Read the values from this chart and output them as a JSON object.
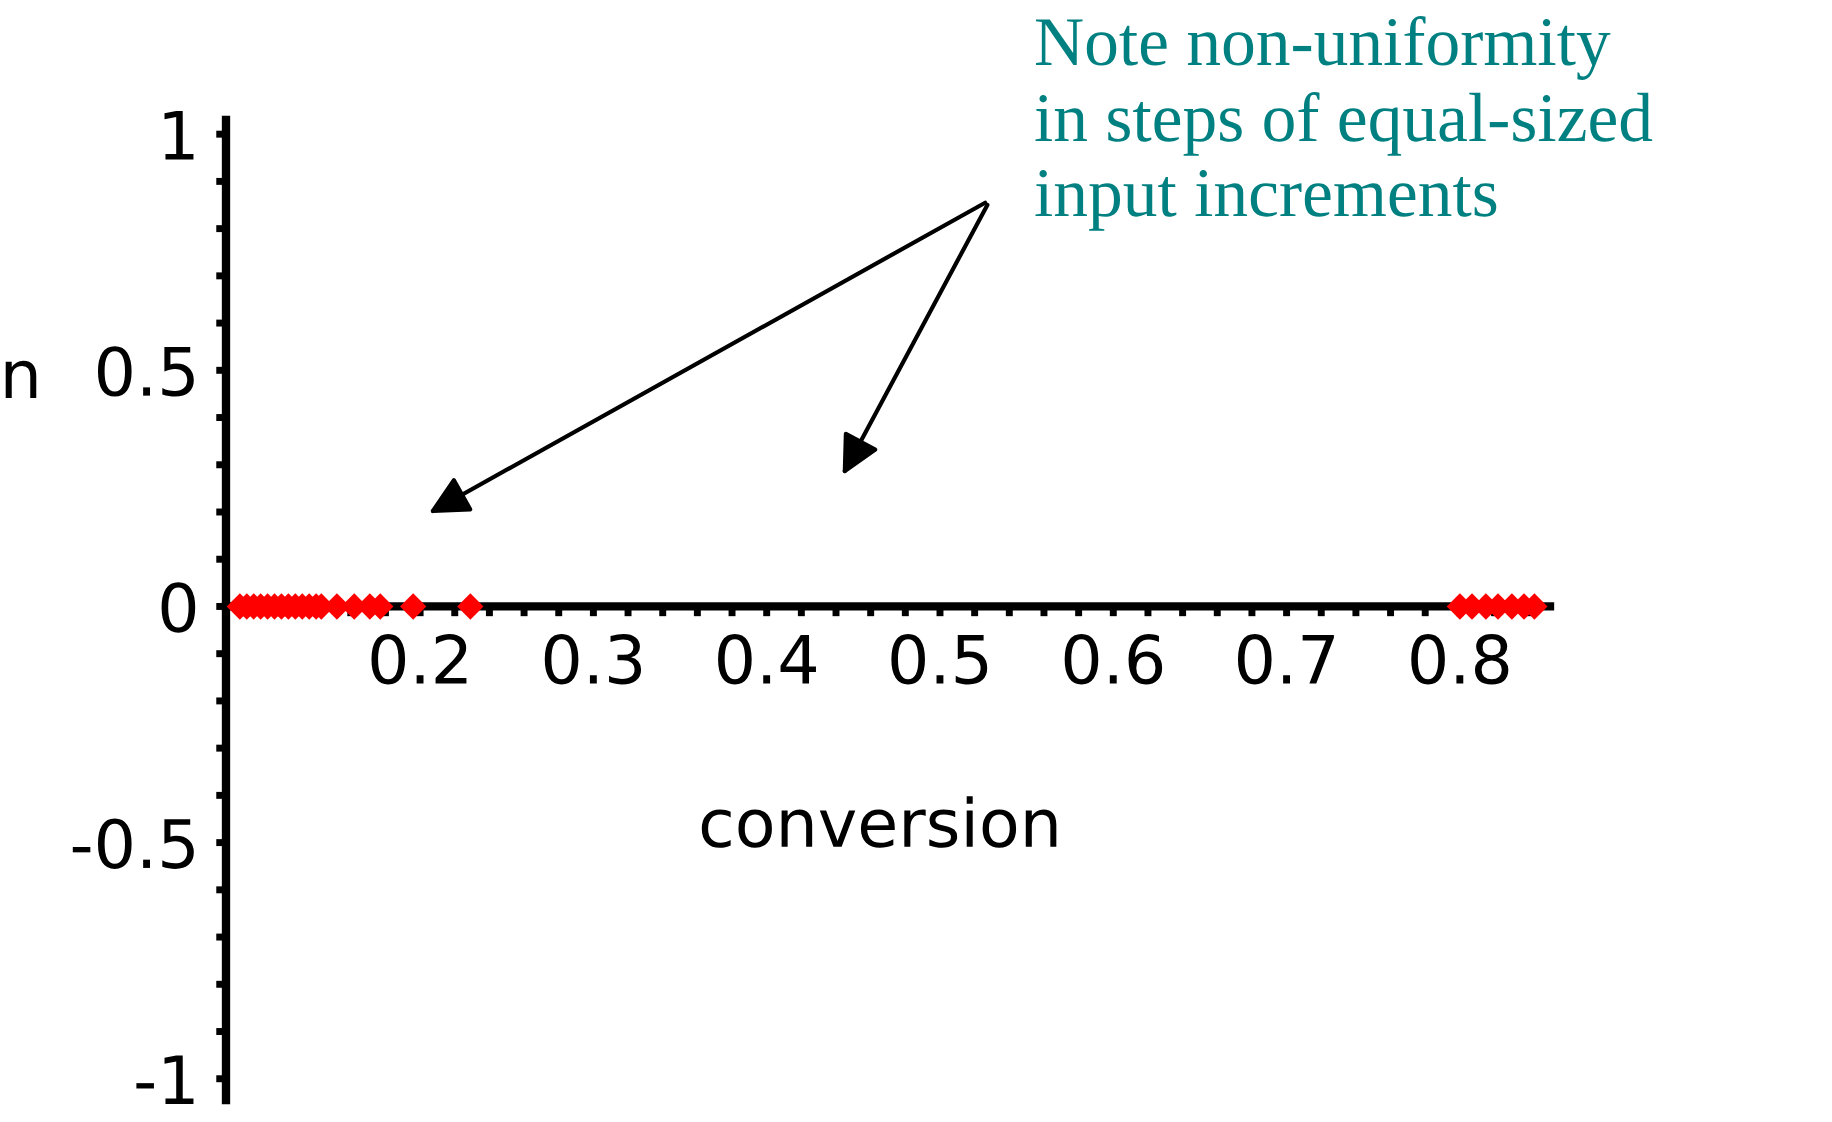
{
  "chart_data": {
    "type": "scatter",
    "xlabel": "conversion",
    "ylabel": "n",
    "x": [
      0.096,
      0.1,
      0.104,
      0.108,
      0.112,
      0.116,
      0.12,
      0.124,
      0.128,
      0.132,
      0.136,
      0.14,
      0.143,
      0.152,
      0.162,
      0.171,
      0.177,
      0.196,
      0.229,
      0.8,
      0.807,
      0.815,
      0.822,
      0.83,
      0.837,
      0.843
    ],
    "series": [
      {
        "color": "#ff0000",
        "values": [
          0,
          0,
          0,
          0,
          0,
          0,
          0,
          0,
          0,
          0,
          0,
          0,
          0,
          0,
          0,
          0,
          0,
          0,
          0,
          0,
          0,
          0,
          0,
          0,
          0,
          0
        ]
      }
    ],
    "marker": "diamond",
    "xlim": [
      0.088,
      0.852
    ],
    "ylim": [
      -1.045,
      1.03
    ],
    "xticks": [
      {
        "value": 0.1,
        "label": null
      },
      {
        "value": 0.12,
        "label": null
      },
      {
        "value": 0.14,
        "label": null
      },
      {
        "value": 0.16,
        "label": null
      },
      {
        "value": 0.18,
        "label": null
      },
      0.2,
      {
        "value": 0.22,
        "label": null
      },
      {
        "value": 0.24,
        "label": null
      },
      {
        "value": 0.26,
        "label": null
      },
      {
        "value": 0.28,
        "label": null
      },
      0.3,
      {
        "value": 0.32,
        "label": null
      },
      {
        "value": 0.34,
        "label": null
      },
      {
        "value": 0.36,
        "label": null
      },
      {
        "value": 0.38,
        "label": null
      },
      0.4,
      {
        "value": 0.42,
        "label": null
      },
      {
        "value": 0.44,
        "label": null
      },
      {
        "value": 0.46,
        "label": null
      },
      {
        "value": 0.48,
        "label": null
      },
      0.5,
      {
        "value": 0.52,
        "label": null
      },
      {
        "value": 0.54,
        "label": null
      },
      {
        "value": 0.56,
        "label": null
      },
      {
        "value": 0.58,
        "label": null
      },
      0.6,
      {
        "value": 0.62,
        "label": null
      },
      {
        "value": 0.64,
        "label": null
      },
      {
        "value": 0.66,
        "label": null
      },
      {
        "value": 0.68,
        "label": null
      },
      0.7,
      {
        "value": 0.72,
        "label": null
      },
      {
        "value": 0.74,
        "label": null
      },
      {
        "value": 0.76,
        "label": null
      },
      {
        "value": 0.78,
        "label": null
      },
      0.8,
      {
        "value": 0.82,
        "label": null
      },
      {
        "value": 0.84,
        "label": null
      }
    ],
    "yticks": [
      -1,
      {
        "value": -0.9,
        "label": null
      },
      {
        "value": -0.8,
        "label": null
      },
      {
        "value": -0.7,
        "label": null
      },
      {
        "value": -0.6,
        "label": null
      },
      -0.5,
      {
        "value": -0.4,
        "label": null
      },
      {
        "value": -0.3,
        "label": null
      },
      {
        "value": -0.2,
        "label": null
      },
      {
        "value": -0.1,
        "label": null
      },
      0,
      {
        "value": 0.1,
        "label": null
      },
      {
        "value": 0.2,
        "label": null
      },
      {
        "value": 0.3,
        "label": null
      },
      {
        "value": 0.4,
        "label": null
      },
      0.5,
      {
        "value": 0.6,
        "label": null
      },
      {
        "value": 0.7,
        "label": null
      },
      {
        "value": 0.8,
        "label": null
      },
      {
        "value": 0.9,
        "label": null
      },
      1
    ],
    "annotations": [
      "Note non-uniformity\nin steps of equal-sized\ninput increments"
    ]
  }
}
